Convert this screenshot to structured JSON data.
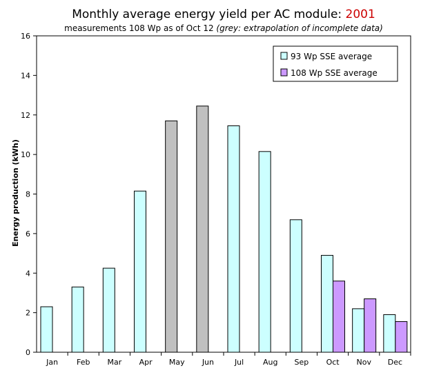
{
  "chart_data": {
    "type": "bar",
    "title": "Monthly average energy yield per AC module: ",
    "title_year": "2001",
    "subtitle": "measurements 108 Wp as of Oct 12 ",
    "subtitle_note": "(grey: extrapolation of incomplete data)",
    "ylabel": "Energy production (kWh)",
    "xlabel": "",
    "ylim": [
      0,
      16
    ],
    "yticks": [
      0,
      2,
      4,
      6,
      8,
      10,
      12,
      14,
      16
    ],
    "grid": false,
    "legend_position": "top-right",
    "categories": [
      "Jan",
      "Feb",
      "Mar",
      "Apr",
      "May",
      "Jun",
      "Jul",
      "Aug",
      "Sep",
      "Oct",
      "Nov",
      "Dec"
    ],
    "series": [
      {
        "name": "93 Wp SSE average",
        "color": "#ccffff",
        "extrapolated_color": "#c0c0c0",
        "values": [
          2.3,
          3.3,
          4.25,
          8.15,
          11.7,
          12.45,
          11.45,
          10.15,
          6.7,
          4.9,
          2.2,
          1.9
        ],
        "extrapolated": [
          false,
          false,
          false,
          false,
          true,
          true,
          false,
          false,
          false,
          false,
          false,
          false
        ]
      },
      {
        "name": "108 Wp SSE average",
        "color": "#cc99ff",
        "values": [
          null,
          null,
          null,
          null,
          null,
          null,
          null,
          null,
          null,
          3.6,
          2.7,
          1.55
        ]
      }
    ]
  }
}
